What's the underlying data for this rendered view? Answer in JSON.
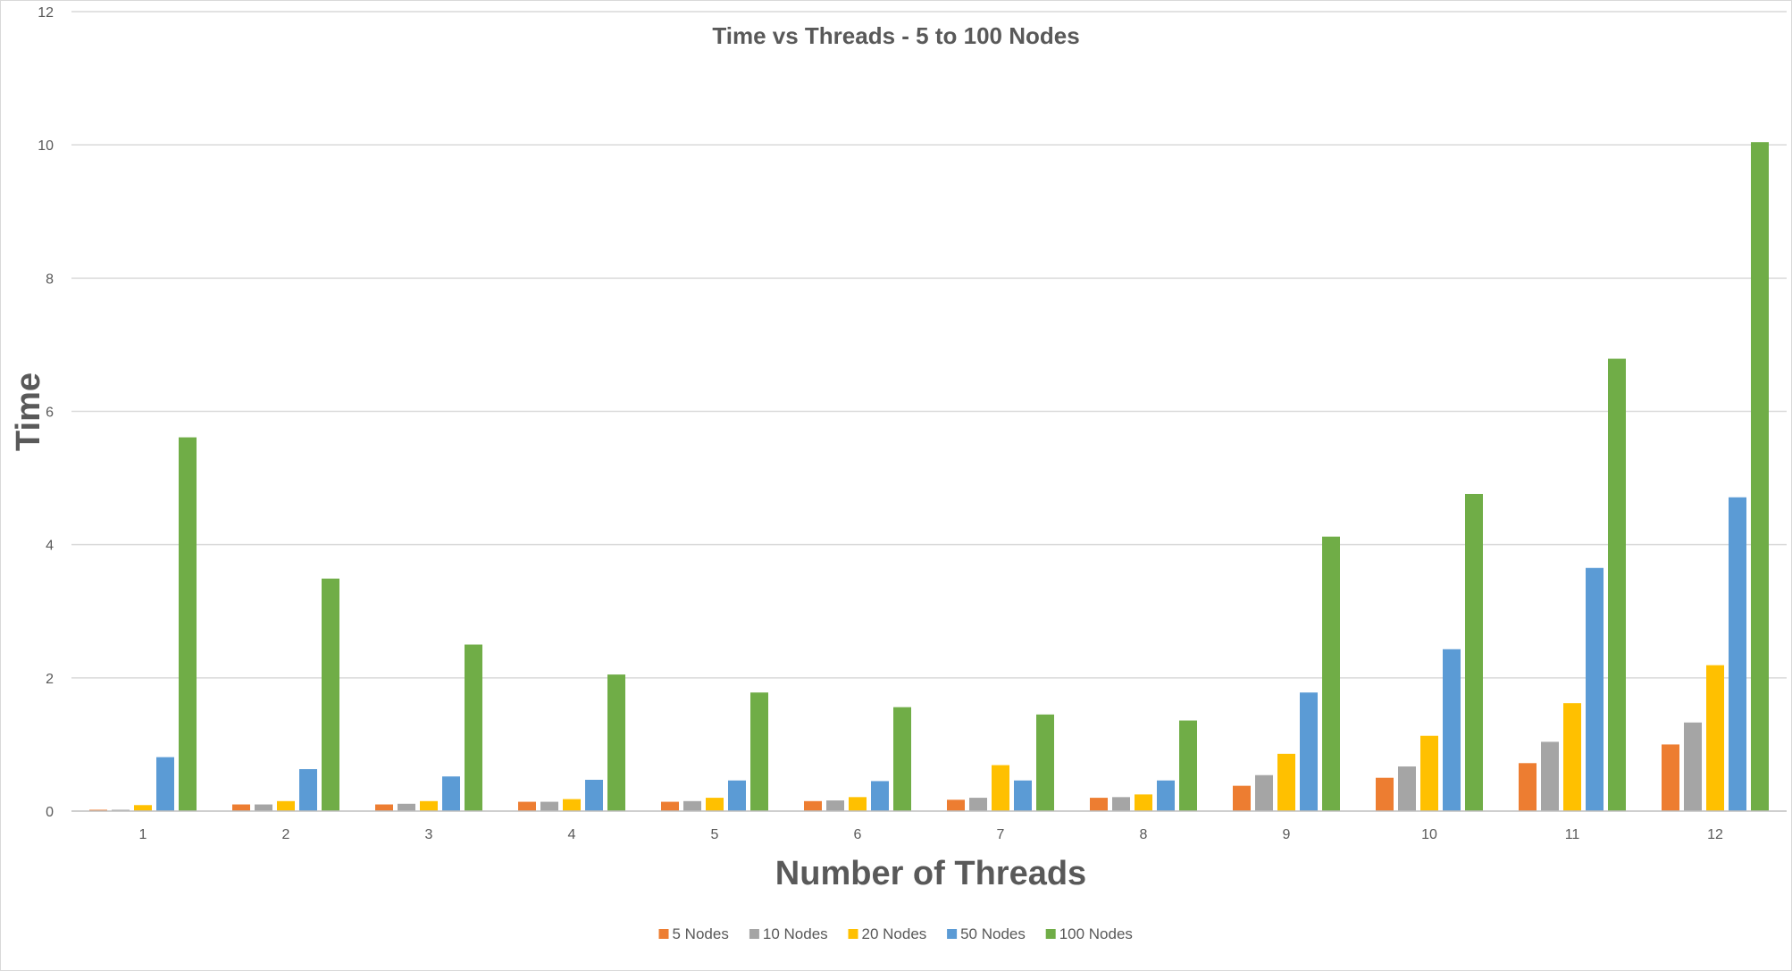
{
  "chart_data": {
    "type": "bar",
    "title": "Time vs Threads - 5 to 100 Nodes",
    "xlabel": "Number of Threads",
    "ylabel": "Time",
    "categories": [
      "1",
      "2",
      "3",
      "4",
      "5",
      "6",
      "7",
      "8",
      "9",
      "10",
      "11",
      "12"
    ],
    "ylim": [
      0,
      12
    ],
    "yticks": [
      "0",
      "2",
      "4",
      "6",
      "8",
      "10",
      "12"
    ],
    "grid": true,
    "legend_position": "bottom",
    "series": [
      {
        "name": "5 Nodes",
        "color": "#ED7D31",
        "values": [
          0.02,
          0.1,
          0.1,
          0.14,
          0.14,
          0.15,
          0.17,
          0.2,
          0.38,
          0.5,
          0.72,
          1.0
        ]
      },
      {
        "name": "10 Nodes",
        "color": "#A5A5A5",
        "values": [
          0.02,
          0.1,
          0.11,
          0.14,
          0.15,
          0.16,
          0.2,
          0.21,
          0.54,
          0.67,
          1.04,
          1.33
        ]
      },
      {
        "name": "20 Nodes",
        "color": "#FFC000",
        "values": [
          0.09,
          0.15,
          0.15,
          0.18,
          0.2,
          0.21,
          0.69,
          0.25,
          0.86,
          1.13,
          1.62,
          2.19
        ]
      },
      {
        "name": "50 Nodes",
        "color": "#5B9BD5",
        "values": [
          0.81,
          0.63,
          0.52,
          0.47,
          0.46,
          0.45,
          0.46,
          0.46,
          1.78,
          2.43,
          3.65,
          4.71
        ]
      },
      {
        "name": "100 Nodes",
        "color": "#70AD47",
        "values": [
          5.61,
          3.49,
          2.5,
          2.05,
          1.78,
          1.56,
          1.45,
          1.36,
          4.12,
          4.76,
          6.79,
          10.04
        ]
      }
    ]
  },
  "colors": {
    "gridline": "#D9D9D9",
    "text": "#595959",
    "axis": "#BFBFBF"
  }
}
